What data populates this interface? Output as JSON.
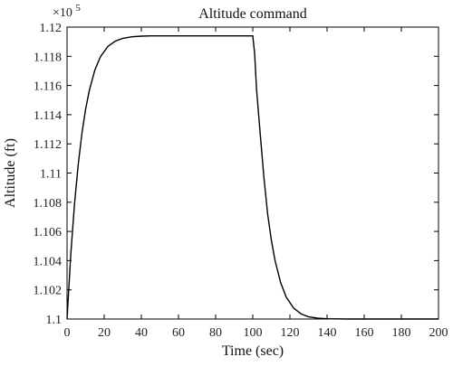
{
  "chart_data": {
    "type": "line",
    "title": "Altitude command",
    "xlabel": "Time (sec)",
    "ylabel": "Altitude (ft)",
    "y_multiplier_base": "×10",
    "y_multiplier_exp": "5",
    "xlim": [
      0,
      200
    ],
    "ylim": [
      1.1,
      1.12
    ],
    "x_ticks": [
      0,
      20,
      40,
      60,
      80,
      100,
      120,
      140,
      160,
      180,
      200
    ],
    "x_tick_labels": [
      "0",
      "20",
      "40",
      "60",
      "80",
      "100",
      "120",
      "140",
      "160",
      "180",
      "200"
    ],
    "y_ticks": [
      1.1,
      1.102,
      1.104,
      1.106,
      1.108,
      1.11,
      1.112,
      1.114,
      1.116,
      1.118,
      1.12
    ],
    "y_tick_labels": [
      "1.1",
      "1.102",
      "1.104",
      "1.106",
      "1.108",
      "1.11",
      "1.112",
      "1.114",
      "1.116",
      "1.118",
      "1.12"
    ],
    "grid": false,
    "series": [
      {
        "x": [
          0,
          2,
          4,
          6,
          8,
          10,
          12,
          15,
          18,
          22,
          26,
          30,
          35,
          40,
          45,
          50,
          55,
          60,
          65,
          70,
          75,
          80,
          85,
          90,
          95,
          100,
          101,
          102,
          104,
          106,
          108,
          110,
          112,
          115,
          118,
          122,
          126,
          130,
          135,
          140,
          145,
          150,
          160,
          170,
          180,
          190,
          200
        ],
        "y": [
          1.1,
          1.1044,
          1.10785,
          1.11056,
          1.11271,
          1.11438,
          1.11566,
          1.11707,
          1.11797,
          1.11868,
          1.11904,
          1.11923,
          1.11934,
          1.11938,
          1.1194,
          1.1194,
          1.1194,
          1.1194,
          1.1194,
          1.1194,
          1.1194,
          1.1194,
          1.1194,
          1.1194,
          1.1194,
          1.1194,
          1.1182,
          1.1158,
          1.1127,
          1.1097,
          1.1072,
          1.1054,
          1.104,
          1.1025,
          1.1015,
          1.10075,
          1.10035,
          1.10015,
          1.10006,
          1.10002,
          1.10001,
          1.1,
          1.1,
          1.1,
          1.1,
          1.1,
          1.1
        ]
      }
    ]
  }
}
